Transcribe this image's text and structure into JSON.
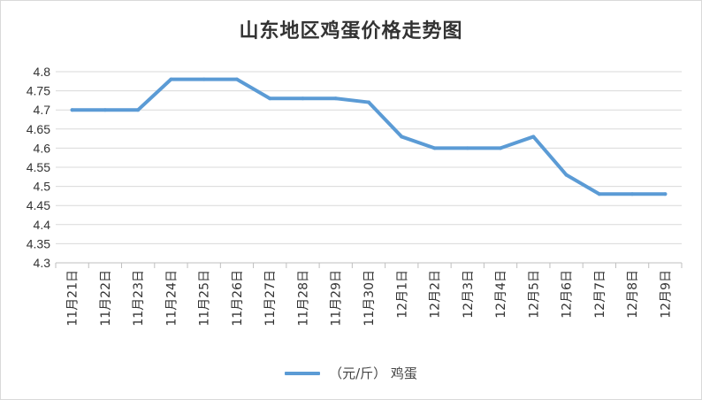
{
  "chart_data": {
    "type": "line",
    "title": "山东地区鸡蛋价格走势图",
    "categories": [
      "11月21日",
      "11月22日",
      "11月23日",
      "11月24日",
      "11月25日",
      "11月26日",
      "11月27日",
      "11月28日",
      "11月29日",
      "11月30日",
      "12月1日",
      "12月2日",
      "12月3日",
      "12月4日",
      "12月5日",
      "12月6日",
      "12月7日",
      "12月8日",
      "12月9日"
    ],
    "series": [
      {
        "name": "（元/斤） 鸡蛋",
        "color": "#5b9bd5",
        "values": [
          4.7,
          4.7,
          4.7,
          4.78,
          4.78,
          4.78,
          4.73,
          4.73,
          4.73,
          4.72,
          4.63,
          4.6,
          4.6,
          4.6,
          4.63,
          4.53,
          4.48,
          4.48,
          4.48
        ]
      }
    ],
    "ylim": [
      4.3,
      4.8
    ],
    "yticks": [
      "4.3",
      "4.35",
      "4.4",
      "4.45",
      "4.5",
      "4.55",
      "4.6",
      "4.65",
      "4.7",
      "4.75",
      "4.8"
    ],
    "xlabel": "",
    "ylabel": "",
    "grid": true,
    "legend": "bottom"
  }
}
